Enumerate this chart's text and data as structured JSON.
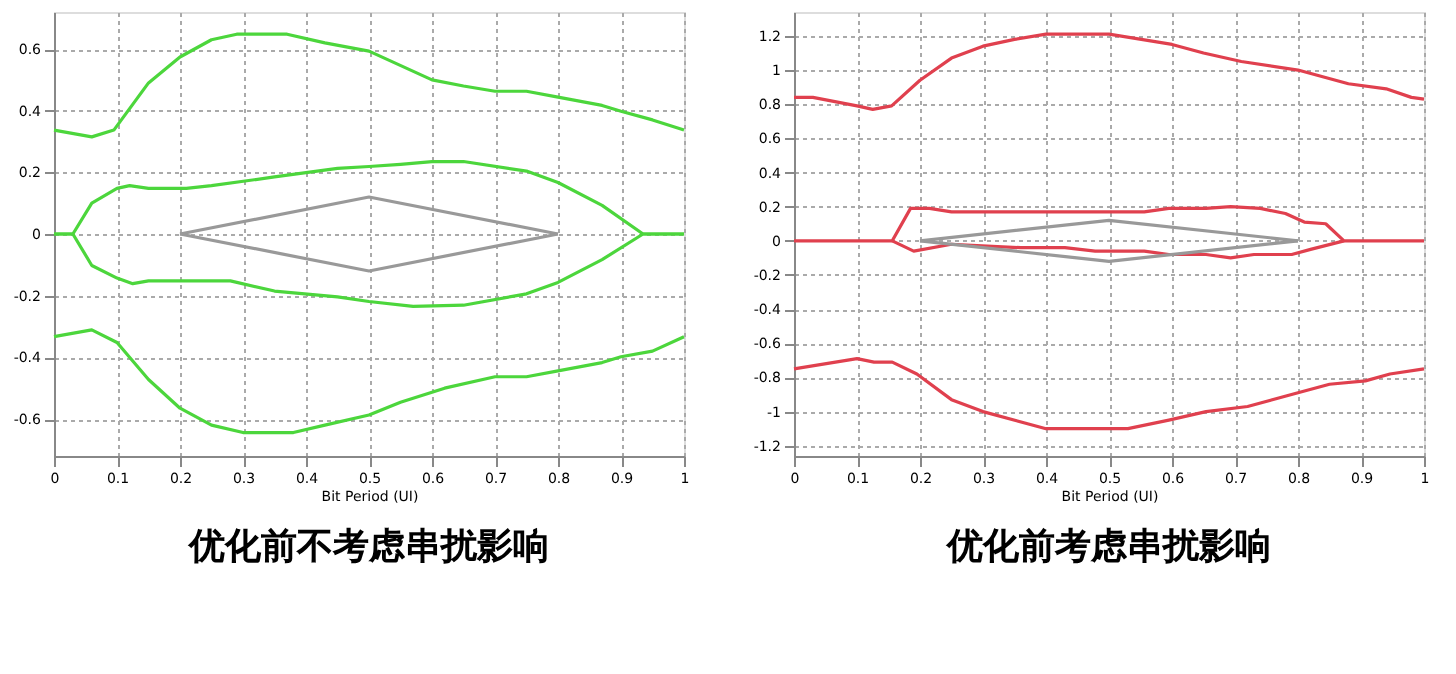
{
  "chart_data": [
    {
      "type": "line",
      "title": "优化前不考虑串扰影响",
      "xlabel": "Bit Period (UI)",
      "xlim": [
        0,
        1
      ],
      "xticks": [
        0,
        0.1,
        0.2,
        0.3,
        0.4,
        0.5,
        0.6,
        0.7,
        0.8,
        0.9,
        1
      ],
      "ylim": [
        -0.72,
        0.72
      ],
      "yticks": [
        -0.6,
        -0.4,
        -0.2,
        0,
        0.2,
        0.4,
        0.6
      ],
      "grid": true,
      "series": [
        {
          "color": "#4cd63c",
          "x": [
            0,
            0.06,
            0.095,
            0.15,
            0.2,
            0.25,
            0.29,
            0.37,
            0.43,
            0.5,
            0.6,
            0.65,
            0.7,
            0.75,
            0.8,
            0.87,
            0.9,
            0.95,
            1
          ],
          "values": [
            0.337,
            0.315,
            0.337,
            0.49,
            0.574,
            0.63,
            0.648,
            0.648,
            0.62,
            0.593,
            0.5,
            0.48,
            0.463,
            0.463,
            0.444,
            0.417,
            0.398,
            0.37,
            0.337
          ]
        },
        {
          "color": "#4cd63c",
          "x": [
            0,
            0.03,
            0.06,
            0.1,
            0.12,
            0.15,
            0.21,
            0.25,
            0.35,
            0.45,
            0.5,
            0.55,
            0.6,
            0.65,
            0.75,
            0.8,
            0.87,
            0.935,
            1
          ],
          "values": [
            0,
            0,
            0.1,
            0.148,
            0.157,
            0.148,
            0.148,
            0.157,
            0.185,
            0.213,
            0.219,
            0.226,
            0.235,
            0.235,
            0.204,
            0.167,
            0.093,
            0,
            0
          ]
        },
        {
          "color": "#4cd63c",
          "x": [
            0,
            0.03,
            0.06,
            0.1,
            0.125,
            0.15,
            0.28,
            0.35,
            0.45,
            0.5,
            0.57,
            0.65,
            0.75,
            0.8,
            0.87,
            0.935,
            1
          ],
          "values": [
            0,
            0,
            -0.102,
            -0.143,
            -0.161,
            -0.152,
            -0.152,
            -0.185,
            -0.204,
            -0.219,
            -0.235,
            -0.231,
            -0.194,
            -0.157,
            -0.083,
            0,
            0
          ]
        },
        {
          "color": "#4cd63c",
          "x": [
            0,
            0.06,
            0.1,
            0.15,
            0.2,
            0.25,
            0.3,
            0.38,
            0.43,
            0.5,
            0.55,
            0.62,
            0.7,
            0.75,
            0.8,
            0.87,
            0.9,
            0.95,
            1
          ],
          "values": [
            -0.333,
            -0.311,
            -0.352,
            -0.472,
            -0.565,
            -0.62,
            -0.644,
            -0.644,
            -0.62,
            -0.587,
            -0.546,
            -0.5,
            -0.463,
            -0.463,
            -0.444,
            -0.417,
            -0.398,
            -0.38,
            -0.333
          ]
        },
        {
          "color": "#999999",
          "x": [
            0.2,
            0.5,
            0.8
          ],
          "values": [
            0,
            0.12,
            0
          ]
        },
        {
          "color": "#999999",
          "x": [
            0.2,
            0.5,
            0.8
          ],
          "values": [
            0,
            -0.12,
            0
          ]
        }
      ]
    },
    {
      "type": "line",
      "title": "优化前考虑串扰影响",
      "xlabel": "Bit Period (UI)",
      "xlim": [
        0,
        1
      ],
      "xticks": [
        0,
        0.1,
        0.2,
        0.3,
        0.4,
        0.5,
        0.6,
        0.7,
        0.8,
        0.9,
        1
      ],
      "ylim": [
        -1.26,
        1.34
      ],
      "yticks": [
        -1.2,
        -1,
        -0.8,
        -0.6,
        -0.4,
        -0.2,
        0,
        0.2,
        0.4,
        0.6,
        0.8,
        1,
        1.2
      ],
      "grid": true,
      "series": [
        {
          "color": "#e0404e",
          "x": [
            0,
            0.03,
            0.1,
            0.125,
            0.155,
            0.2,
            0.25,
            0.3,
            0.35,
            0.4,
            0.5,
            0.6,
            0.65,
            0.71,
            0.8,
            0.88,
            0.94,
            0.98,
            1
          ],
          "values": [
            0.84,
            0.84,
            0.79,
            0.77,
            0.79,
            0.94,
            1.07,
            1.14,
            1.18,
            1.21,
            1.21,
            1.15,
            1.1,
            1.05,
            1.0,
            0.92,
            0.89,
            0.84,
            0.83
          ]
        },
        {
          "color": "#e0404e",
          "x": [
            0,
            0.156,
            0.185,
            0.215,
            0.25,
            0.556,
            0.595,
            0.654,
            0.693,
            0.74,
            0.78,
            0.81,
            0.844,
            0.873,
            1
          ],
          "values": [
            0,
            0,
            0.19,
            0.19,
            0.17,
            0.17,
            0.19,
            0.19,
            0.2,
            0.19,
            0.16,
            0.11,
            0.1,
            0,
            0
          ]
        },
        {
          "color": "#e0404e",
          "x": [
            0.156,
            0.19,
            0.25,
            0.36,
            0.43,
            0.478,
            0.556,
            0.595,
            0.654,
            0.693,
            0.73,
            0.79,
            0.82,
            0.873
          ],
          "values": [
            0,
            -0.06,
            -0.02,
            -0.04,
            -0.04,
            -0.06,
            -0.06,
            -0.08,
            -0.08,
            -0.1,
            -0.08,
            -0.08,
            -0.05,
            0
          ]
        },
        {
          "color": "#e0404e",
          "x": [
            0,
            0.1,
            0.127,
            0.156,
            0.195,
            0.25,
            0.3,
            0.4,
            0.53,
            0.595,
            0.654,
            0.72,
            0.8,
            0.85,
            0.907,
            0.946,
            1
          ],
          "values": [
            -0.75,
            -0.69,
            -0.71,
            -0.71,
            -0.78,
            -0.93,
            -1.0,
            -1.1,
            -1.1,
            -1.05,
            -1.0,
            -0.97,
            -0.89,
            -0.84,
            -0.82,
            -0.78,
            -0.75
          ]
        },
        {
          "color": "#999999",
          "x": [
            0.2,
            0.5,
            0.8
          ],
          "values": [
            0,
            0.12,
            0
          ]
        },
        {
          "color": "#999999",
          "x": [
            0.2,
            0.5,
            0.8
          ],
          "values": [
            0,
            -0.12,
            0
          ]
        }
      ]
    }
  ]
}
